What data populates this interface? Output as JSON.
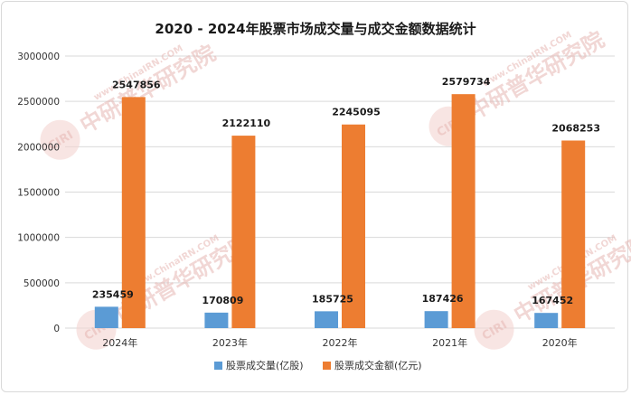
{
  "chart_data": {
    "type": "bar",
    "title": "2020 - 2024年股票市场成交量与成交金额数据统计",
    "categories": [
      "2024年",
      "2023年",
      "2022年",
      "2021年",
      "2020年"
    ],
    "series": [
      {
        "name": "股票成交量(亿股)",
        "values": [
          235459,
          170809,
          185725,
          187426,
          167452
        ],
        "color": "#5b9bd5"
      },
      {
        "name": "股票成交金额(亿元)",
        "values": [
          2547856,
          2122110,
          2245095,
          2579734,
          2068253
        ],
        "color": "#ed7d31"
      }
    ],
    "ylim": [
      0,
      3000000
    ],
    "yticks": [
      "0",
      "500000",
      "1000000",
      "1500000",
      "2000000",
      "2500000",
      "3000000"
    ],
    "grid": true,
    "legend_position": "bottom"
  },
  "watermark": {
    "logo_text": "CIRI",
    "cn_text": "中研普华研究院",
    "url_text": "www.ChinaIRN.COM"
  }
}
